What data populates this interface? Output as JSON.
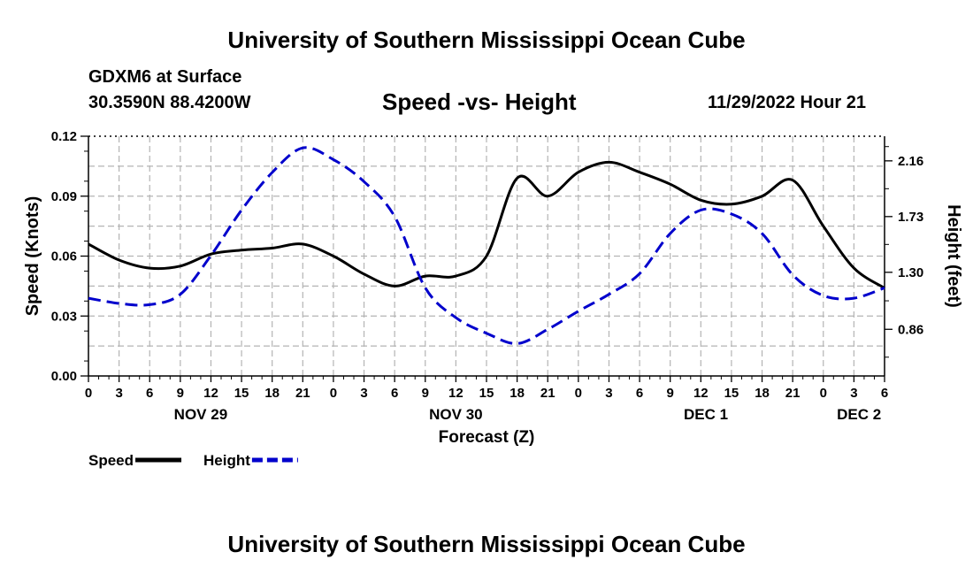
{
  "header": {
    "title": "University of Southern Mississippi Ocean Cube",
    "station": "GDXM6 at Surface",
    "coordinates": "30.3590N  88.4200W",
    "subtitle": "Speed -vs- Height",
    "timestamp": "11/29/2022 Hour 21"
  },
  "footer": {
    "title": "University of Southern Mississippi Ocean Cube"
  },
  "chart_data": {
    "type": "line",
    "title": "Speed -vs- Height",
    "xlabel": "Forecast (Z)",
    "ylabel": "Speed (Knots)",
    "y2label": "Height (feet)",
    "ylim": [
      0,
      0.12
    ],
    "y2lim": [
      0.5,
      2.35
    ],
    "xlim": [
      0,
      78
    ],
    "grid": true,
    "x_ticks": [
      0,
      3,
      6,
      9,
      12,
      15,
      18,
      21,
      24,
      27,
      30,
      33,
      36,
      39,
      42,
      45,
      48,
      51,
      54,
      57,
      60,
      63,
      66,
      69,
      72,
      75,
      78
    ],
    "x_tick_labels": [
      "0",
      "3",
      "6",
      "9",
      "12",
      "15",
      "18",
      "21",
      "0",
      "3",
      "6",
      "9",
      "12",
      "15",
      "18",
      "21",
      "0",
      "3",
      "6",
      "9",
      "12",
      "15",
      "18",
      "21",
      "0",
      "3",
      "6"
    ],
    "day_labels": [
      {
        "x": 11,
        "label": "NOV 29"
      },
      {
        "x": 36,
        "label": "NOV 30"
      },
      {
        "x": 60.5,
        "label": "DEC 1"
      },
      {
        "x": 75.5,
        "label": "DEC 2"
      }
    ],
    "y_ticks": [
      0,
      0.03,
      0.06,
      0.09,
      0.12
    ],
    "y_tick_labels": [
      "0.00",
      "0.03",
      "0.06",
      "0.09",
      "0.12"
    ],
    "y2_ticks": [
      0.86,
      1.3,
      1.73,
      2.16
    ],
    "y2_tick_labels": [
      "0.86",
      "1.30",
      "1.73",
      "2.16"
    ],
    "legend_position": "bottom-left",
    "series": [
      {
        "name": "Speed",
        "axis": "left",
        "color": "#000000",
        "style": "solid",
        "x": [
          0,
          3,
          6,
          9,
          12,
          15,
          18,
          21,
          24,
          27,
          30,
          33,
          36,
          39,
          42,
          45,
          48,
          51,
          54,
          57,
          60,
          63,
          66,
          69,
          72,
          75,
          78
        ],
        "values": [
          0.066,
          0.058,
          0.054,
          0.055,
          0.061,
          0.063,
          0.064,
          0.066,
          0.06,
          0.051,
          0.045,
          0.05,
          0.05,
          0.06,
          0.099,
          0.09,
          0.102,
          0.107,
          0.102,
          0.096,
          0.088,
          0.086,
          0.09,
          0.098,
          0.075,
          0.054,
          0.044
        ]
      },
      {
        "name": "Height",
        "axis": "right",
        "color": "#0000cc",
        "style": "dashed",
        "x": [
          0,
          3,
          6,
          9,
          12,
          15,
          18,
          21,
          24,
          27,
          30,
          33,
          36,
          39,
          42,
          45,
          48,
          51,
          54,
          57,
          60,
          63,
          66,
          69,
          72,
          75,
          78
        ],
        "values": [
          1.1,
          1.06,
          1.05,
          1.13,
          1.43,
          1.78,
          2.07,
          2.26,
          2.17,
          2.0,
          1.73,
          1.18,
          0.95,
          0.83,
          0.75,
          0.86,
          1.0,
          1.13,
          1.29,
          1.6,
          1.78,
          1.75,
          1.6,
          1.28,
          1.12,
          1.1,
          1.18
        ]
      }
    ]
  }
}
